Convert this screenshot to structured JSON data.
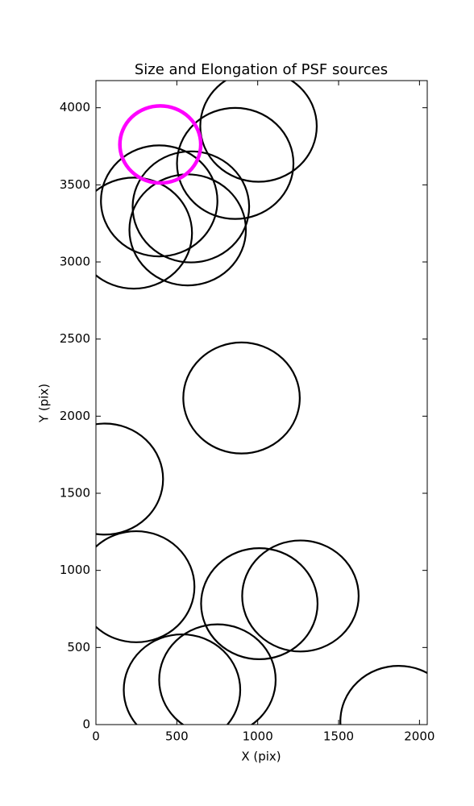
{
  "chart_data": {
    "type": "ellipse",
    "title": "Size and Elongation of PSF sources",
    "x_label": "X (pix)",
    "y_label": "Y (pix)",
    "xlim": [
      0,
      2048
    ],
    "ylim": [
      0,
      4176
    ],
    "xticks": [
      0,
      500,
      1000,
      1500,
      2000
    ],
    "yticks": [
      0,
      500,
      1000,
      1500,
      2000,
      2500,
      3000,
      3500,
      4000
    ],
    "series": [
      {
        "color": "#000000",
        "x": [
          1005,
          861,
          391,
          587,
          567,
          234,
          900,
          55,
          249,
          1010,
          1264,
          532,
          751,
          1871
        ],
        "y": [
          3880,
          3639,
          3396,
          3357,
          3208,
          3187,
          2118,
          1592,
          894,
          784,
          834,
          225,
          290,
          21
        ],
        "sizes": [
          720,
          720,
          720,
          720,
          720,
          720,
          720,
          720,
          720,
          720,
          720,
          720,
          720,
          720
        ]
      },
      {
        "color": "#ff00ff",
        "x": [
          398
        ],
        "y": [
          3762
        ],
        "sizes": [
          500
        ]
      }
    ]
  }
}
